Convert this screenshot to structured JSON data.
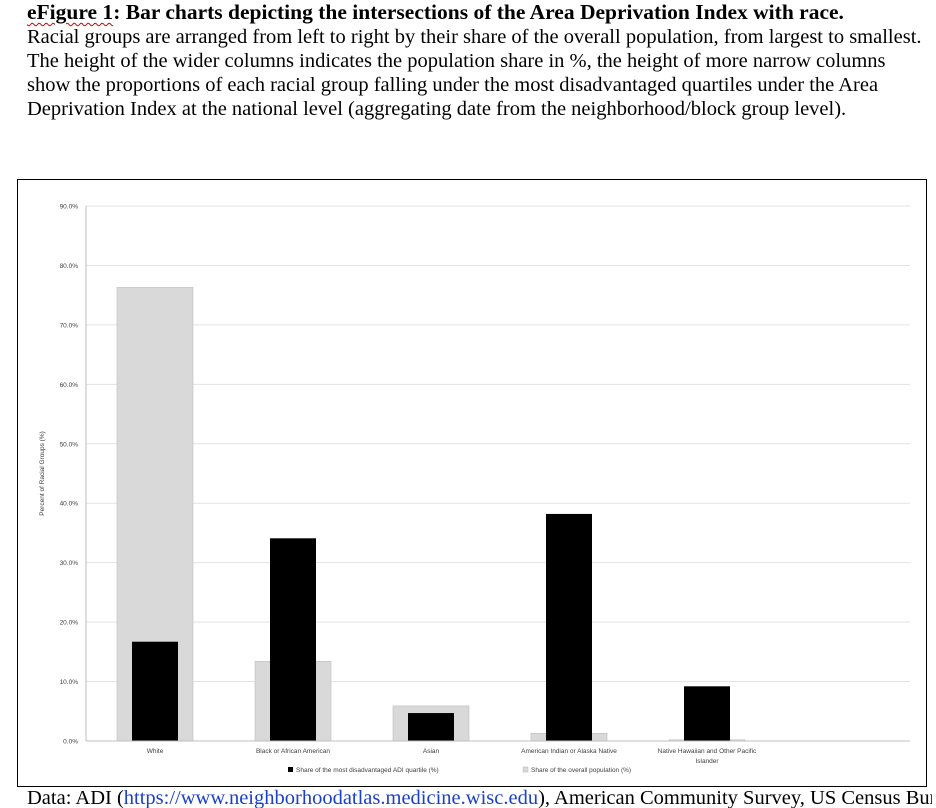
{
  "caption": {
    "title_prefix": "eFigure 1",
    "title_rest": ": Bar charts depicting the intersections of the Area Deprivation Index with race.",
    "body": "Racial groups are arranged from left to right by their share of the overall population, from largest to smallest. The height of the wider columns indicates the population share in %, the height of more narrow columns show the proportions of each racial group falling under the most disadvantaged quartiles under the Area Deprivation Index at the national level (aggregating date from the neighborhood/block group level)."
  },
  "footer": {
    "start": "Data: ADI (",
    "link": "https://www.neighborhoodatlas.medicine.wisc.edu",
    "end": "), American Community Survey, US Census Bureau"
  },
  "colors": {
    "adi_series": "#000000",
    "population_series": "#d9d9d9",
    "gridline": "#e3e3e3"
  },
  "chart_data": {
    "type": "bar",
    "title": "",
    "xlabel": "",
    "ylabel": "Percent of Racial Groups (%)",
    "ylim": [
      0,
      90
    ],
    "yticks": [
      "0.0%",
      "10.0%",
      "20.0%",
      "30.0%",
      "40.0%",
      "50.0%",
      "60.0%",
      "70.0%",
      "80.0%",
      "90.0%"
    ],
    "ytick_values": [
      0,
      10,
      20,
      30,
      40,
      50,
      60,
      70,
      80,
      90
    ],
    "grid": true,
    "legend_position": "bottom",
    "categories": [
      [
        "White"
      ],
      [
        "Black or African American"
      ],
      [
        "Asian"
      ],
      [
        "American Indian or Alaska Native"
      ],
      [
        "Native Hawaiian and Other Pacific",
        "Islander"
      ]
    ],
    "series": [
      {
        "name": "Share of the overall population (%)",
        "style": "wide",
        "color": "#d9d9d9",
        "values": [
          76.3,
          13.4,
          5.9,
          1.3,
          0.2
        ]
      },
      {
        "name": "Share of the most disadvantaged ADI quartile (%)",
        "style": "narrow",
        "color": "#000000",
        "values": [
          16.7,
          34.1,
          4.7,
          38.2,
          9.2
        ]
      }
    ],
    "legend_order": [
      1,
      0
    ]
  }
}
